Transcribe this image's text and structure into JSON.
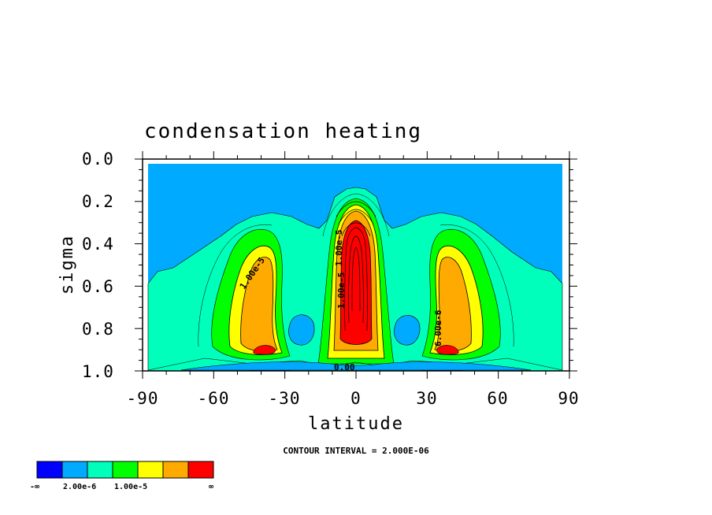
{
  "chart_data": {
    "type": "contour",
    "title": "condensation heating",
    "xlabel": "latitude",
    "ylabel": "sigma",
    "xlim": [
      -90,
      90
    ],
    "ylim": [
      0.0,
      1.0
    ],
    "y_inverted": true,
    "xticks": [
      "-90",
      "-60",
      "-30",
      "0",
      "30",
      "60",
      "90"
    ],
    "yticks": [
      "0.0",
      "0.2",
      "0.4",
      "0.6",
      "0.8",
      "1.0"
    ],
    "contour_interval_note": "CONTOUR INTERVAL = 2.000E-06",
    "contour_labels": [
      "1.00e-5",
      "1.00e-5",
      "1.00e-5",
      "6.00e-6",
      "0.00"
    ],
    "colorbar": {
      "colors": [
        "#0000ff",
        "#00aaff",
        "#00ffbb",
        "#00ff00",
        "#ffff00",
        "#ffaa00",
        "#ff0000"
      ],
      "labels": [
        "-∞",
        "2.00e-6",
        "1.00e-5",
        "∞"
      ]
    },
    "features": [
      {
        "name": "equatorial maximum",
        "lat": 0,
        "sigma_range": [
          0.28,
          0.86
        ],
        "level": "peak"
      },
      {
        "name": "southern storm track",
        "lat": -41,
        "sigma_range": [
          0.42,
          0.9
        ],
        "level": "high"
      },
      {
        "name": "northern storm track",
        "lat": 41,
        "sigma_range": [
          0.42,
          0.9
        ],
        "level": "high"
      },
      {
        "name": "near-surface negative band",
        "lat_range": [
          -55,
          55
        ],
        "sigma": 0.99,
        "level": "negative"
      }
    ]
  }
}
